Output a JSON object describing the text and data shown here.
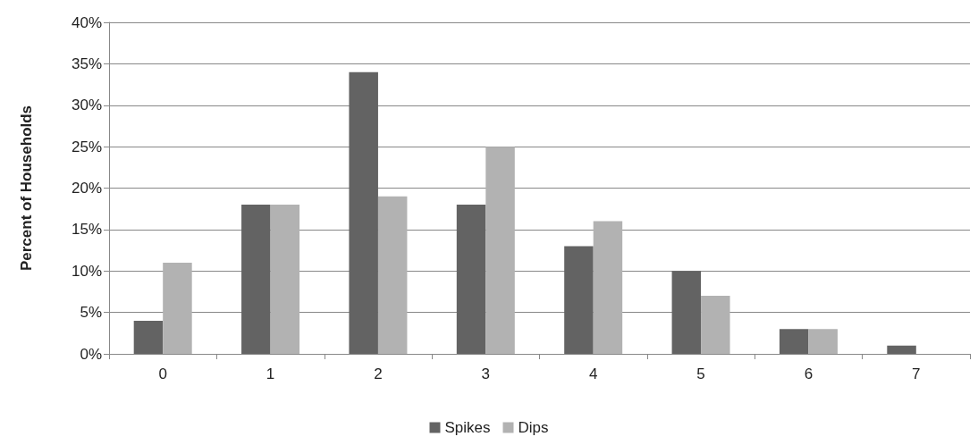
{
  "chart_data": {
    "type": "bar",
    "ylabel": "Percent of Households",
    "categories": [
      "0",
      "1",
      "2",
      "3",
      "4",
      "5",
      "6",
      "7"
    ],
    "series": [
      {
        "name": "Spikes",
        "color": "#636363",
        "values": [
          4,
          18,
          34,
          18,
          13,
          10,
          3,
          1
        ]
      },
      {
        "name": "Dips",
        "color": "#b2b2b2",
        "values": [
          11,
          18,
          19,
          25,
          16,
          7,
          3,
          0
        ]
      }
    ],
    "ylim": [
      0,
      40
    ],
    "yticks": [
      {
        "value": 0,
        "label": "0%"
      },
      {
        "value": 5,
        "label": "5%"
      },
      {
        "value": 10,
        "label": "10%"
      },
      {
        "value": 15,
        "label": "15%"
      },
      {
        "value": 20,
        "label": "20%"
      },
      {
        "value": 25,
        "label": "25%"
      },
      {
        "value": 30,
        "label": "30%"
      },
      {
        "value": 35,
        "label": "35%"
      },
      {
        "value": 40,
        "label": "40%"
      }
    ],
    "grid": "y",
    "legend": "bottom"
  }
}
